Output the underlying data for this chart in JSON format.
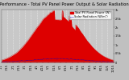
{
  "title": "Solar PV/Inverter Performance - Total PV Panel Power Output & Solar Radiation",
  "n_points": 200,
  "pv_color": "#dd0000",
  "pv_edge_color": "#cc0000",
  "radiation_color": "#0000cc",
  "background_color": "#c0c0c0",
  "plot_bg_color": "#c8c8c8",
  "grid_color": "#ffffff",
  "ylabel_right": [
    "3k",
    "2.5k",
    "2k",
    "1.5k",
    "1k",
    "0.5k",
    "0"
  ],
  "legend_pv": "Total PV Panel Power (W)",
  "legend_rad": "Solar Radiation (W/m²)",
  "title_fontsize": 3.8,
  "tick_fontsize": 2.5,
  "legend_fontsize": 2.6
}
